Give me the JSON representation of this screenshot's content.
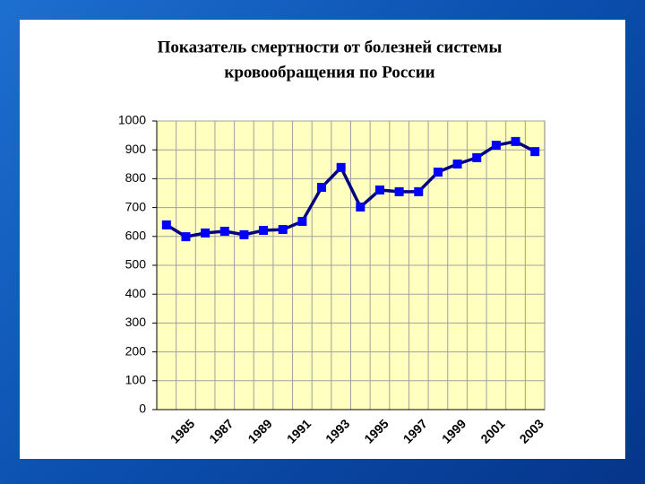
{
  "chart_data": {
    "type": "line",
    "title": [
      "Показатель смертности от болезней системы",
      "кровообращения по России"
    ],
    "categories": [
      null,
      "1985",
      null,
      "1987",
      null,
      "1989",
      null,
      "1991",
      null,
      "1993",
      null,
      "1995",
      null,
      "1997",
      null,
      "1999",
      null,
      "2001",
      null,
      "2003"
    ],
    "series": [
      {
        "name": null,
        "color": "#000080",
        "marker_color": "#0000ff",
        "values": [
          640,
          599,
          612,
          618,
          606,
          621,
          624,
          652,
          770,
          839,
          702,
          761,
          755,
          755,
          823,
          851,
          873,
          916,
          929,
          894
        ]
      }
    ],
    "ylim": [
      0,
      1000
    ],
    "yticks": [
      0,
      100,
      200,
      300,
      400,
      500,
      600,
      700,
      800,
      900,
      1000
    ],
    "grid": true,
    "plot_background": "#ffffc0"
  }
}
